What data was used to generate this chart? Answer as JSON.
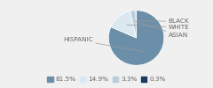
{
  "labels": [
    "HISPANIC",
    "WHITE",
    "ASIAN",
    "BLACK"
  ],
  "values": [
    81.5,
    14.9,
    3.3,
    0.3
  ],
  "colors": [
    "#6b8fa8",
    "#dce8f0",
    "#b8ceda",
    "#1a3a5c"
  ],
  "legend_labels": [
    "81.5%",
    "14.9%",
    "3.3%",
    "0.3%"
  ],
  "legend_colors": [
    "#6b8fa8",
    "#dce8f0",
    "#b8ceda",
    "#1a3a5c"
  ],
  "label_color": "#666666",
  "font_size": 5.2,
  "bg_color": "#f0f0f0"
}
